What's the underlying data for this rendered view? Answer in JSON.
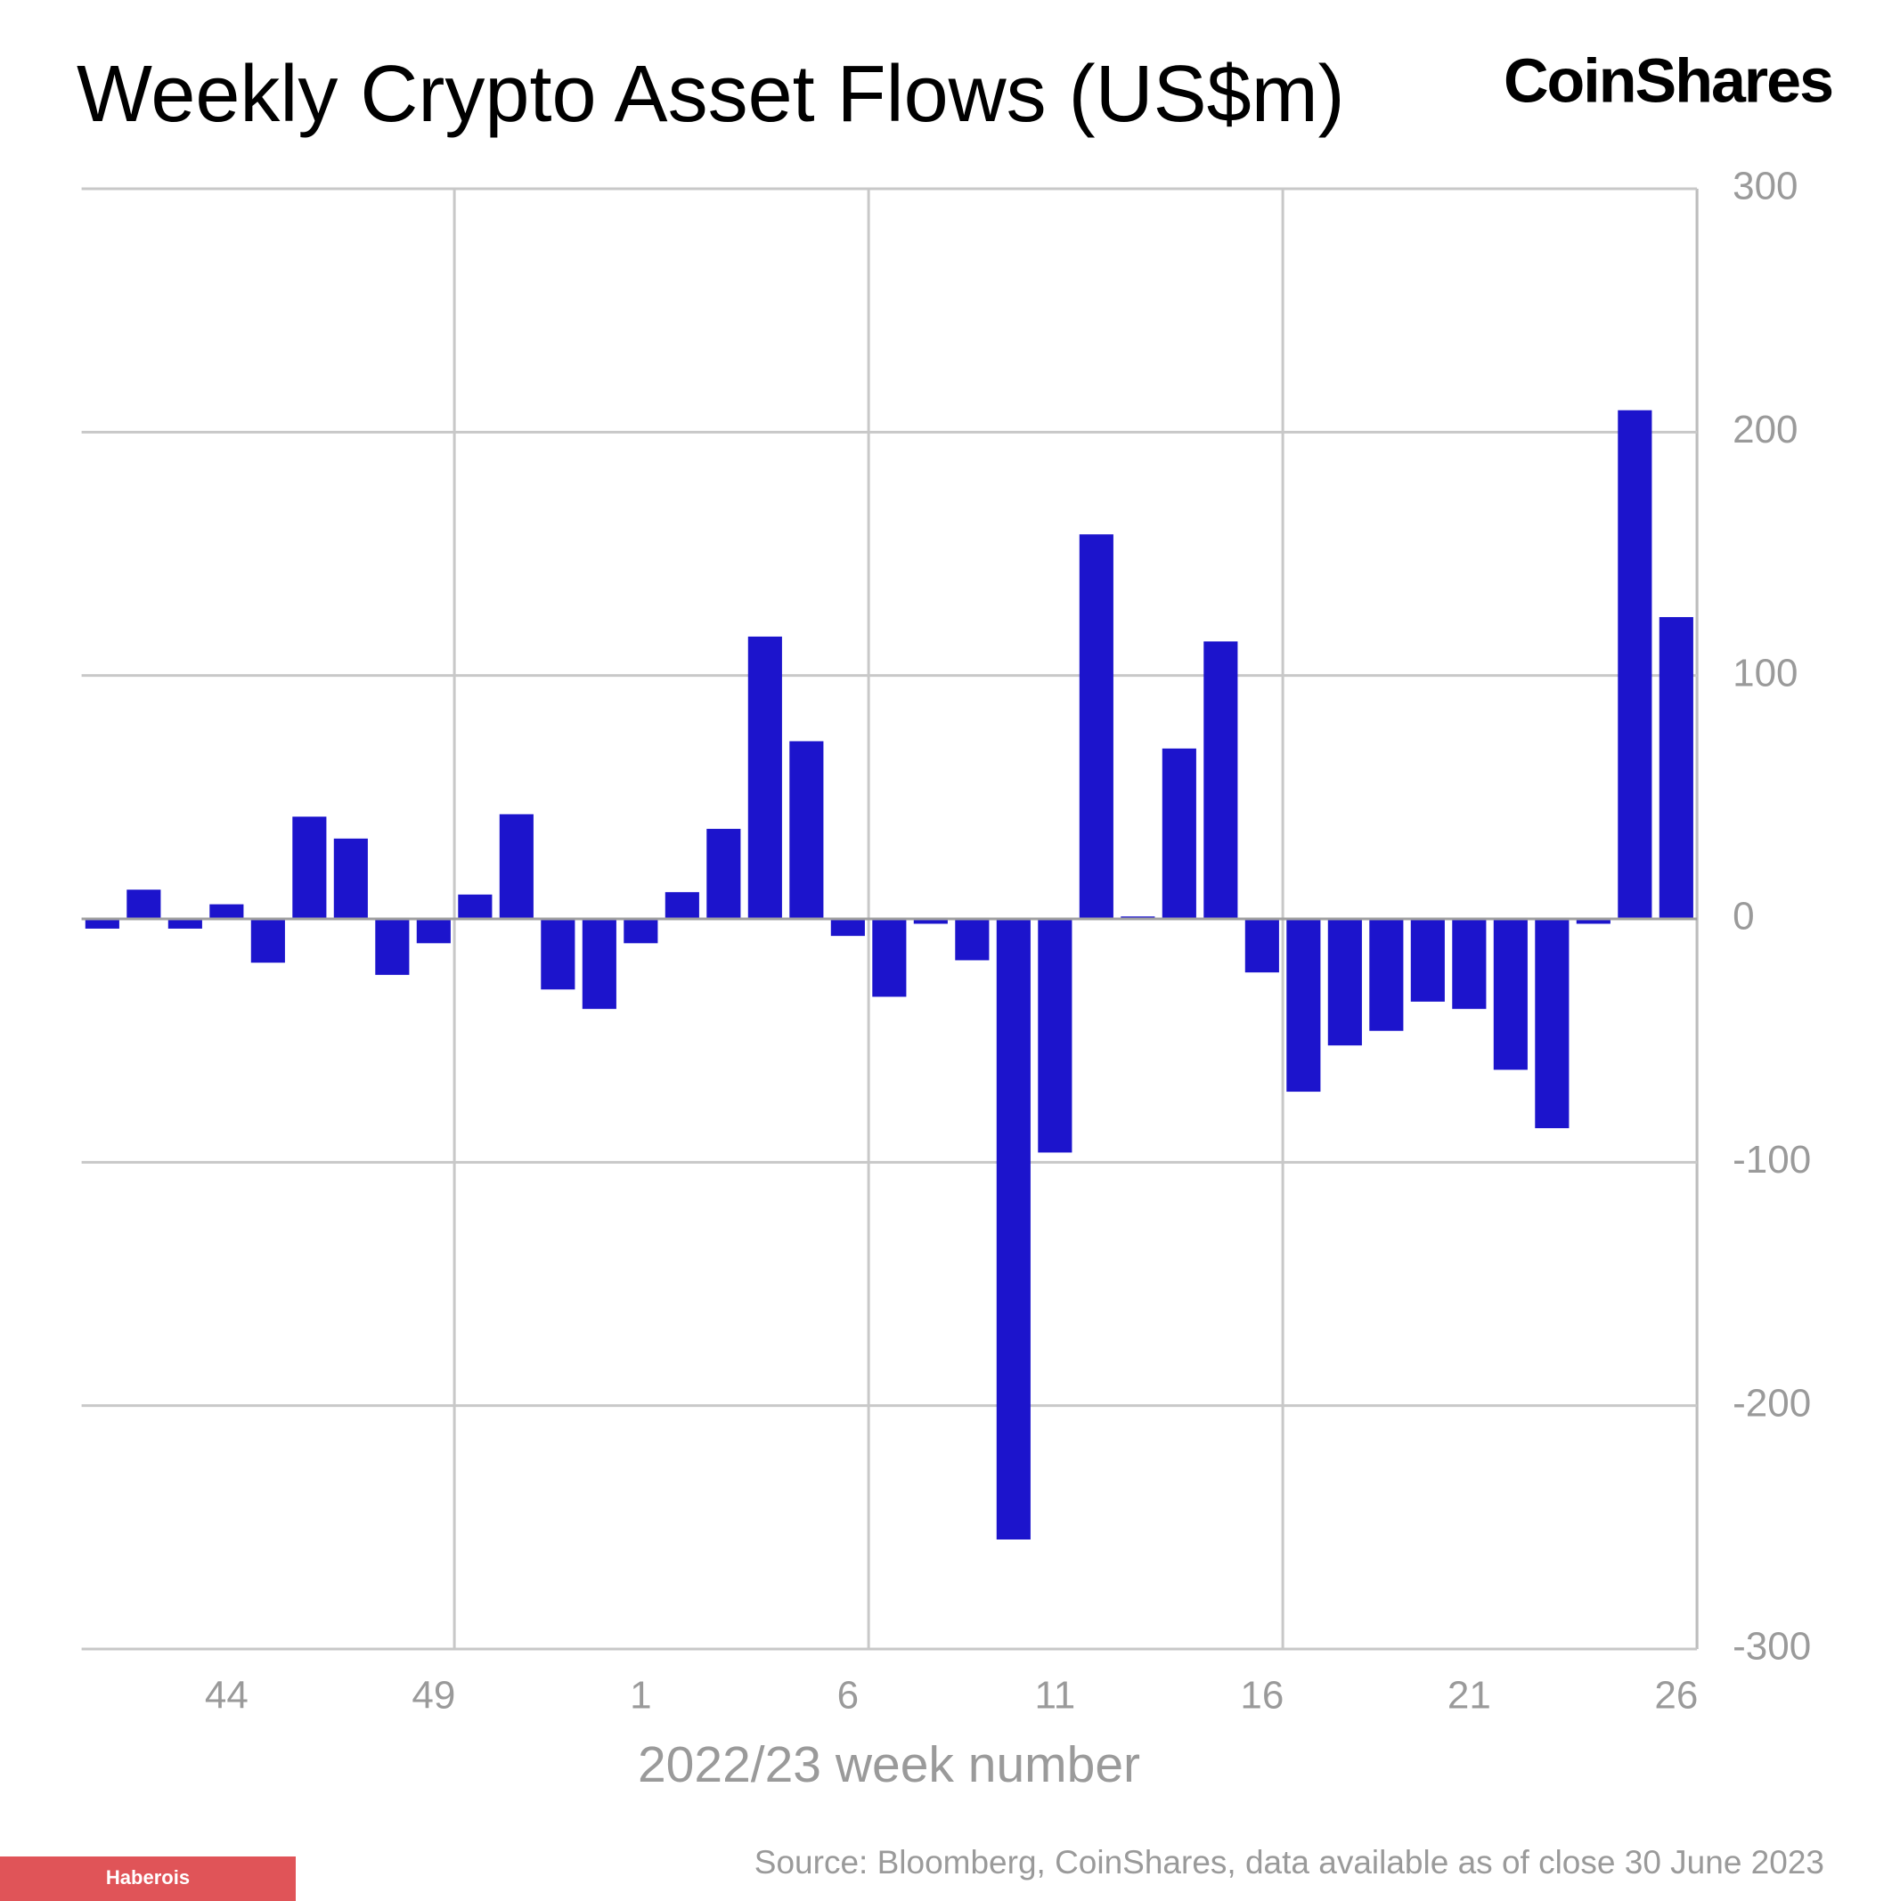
{
  "chart_data": {
    "type": "bar",
    "title": "Weekly Crypto Asset Flows (US$m)",
    "brand": "CoinShares",
    "x_label": "2022/23 week number",
    "source": "Source: Bloomberg, CoinShares, data available as of close 30 June 2023",
    "watermark": "Haberois",
    "categories": [
      null,
      null,
      null,
      "44",
      null,
      null,
      null,
      null,
      "49",
      null,
      null,
      null,
      null,
      "1",
      null,
      null,
      null,
      null,
      "6",
      null,
      null,
      null,
      null,
      "11",
      null,
      null,
      null,
      null,
      "16",
      null,
      null,
      null,
      null,
      "21",
      null,
      null,
      null,
      null,
      "26"
    ],
    "values": [
      -4,
      12,
      -4,
      6,
      -18,
      42,
      33,
      -23,
      -10,
      10,
      43,
      -29,
      -37,
      -10,
      11,
      37,
      116,
      73,
      -7,
      -32,
      -2,
      -17,
      -255,
      -96,
      158,
      1,
      70,
      114,
      -22,
      -71,
      -52,
      -46,
      -34,
      -37,
      -62,
      -86,
      -2,
      209,
      124
    ],
    "color": "#1c14cc",
    "ylim": [
      -300,
      300
    ],
    "yticks": [
      -300,
      -200,
      -100,
      0,
      100,
      200,
      300
    ],
    "grid": true
  }
}
